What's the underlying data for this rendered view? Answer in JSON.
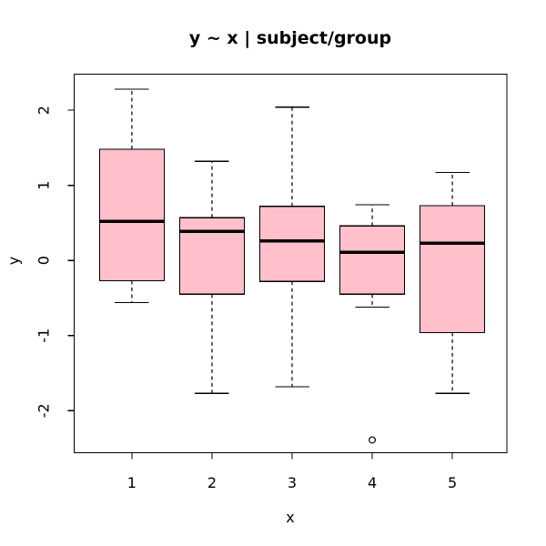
{
  "page": {
    "background": "#ffffff"
  },
  "chart_data": {
    "type": "boxplot",
    "title": "y ~ x | subject/group",
    "xlabel": "x",
    "ylabel": "y",
    "categories": [
      "1",
      "2",
      "3",
      "4",
      "5"
    ],
    "y_ticks": [
      "-2",
      "-1",
      "0",
      "1",
      "2"
    ],
    "ylim": [
      -2.56,
      2.48
    ],
    "xlim": [
      0.28,
      5.68
    ],
    "grid": false,
    "legend": "none",
    "box_fill": "#FFC0CB",
    "line_color": "#000000",
    "series": [
      {
        "x": 1,
        "whisker_low": -0.56,
        "q1": -0.27,
        "median": 0.52,
        "q3": 1.48,
        "whisker_high": 2.28,
        "outliers": []
      },
      {
        "x": 2,
        "whisker_low": -1.77,
        "q1": -0.45,
        "median": 0.39,
        "q3": 0.57,
        "whisker_high": 1.32,
        "outliers": []
      },
      {
        "x": 3,
        "whisker_low": -1.68,
        "q1": -0.28,
        "median": 0.26,
        "q3": 0.72,
        "whisker_high": 2.04,
        "outliers": []
      },
      {
        "x": 4,
        "whisker_low": -0.62,
        "q1": -0.45,
        "median": 0.11,
        "q3": 0.46,
        "whisker_high": 0.74,
        "outliers": [
          -2.39
        ]
      },
      {
        "x": 5,
        "whisker_low": -1.77,
        "q1": -0.96,
        "median": 0.23,
        "q3": 0.73,
        "whisker_high": 1.17,
        "outliers": []
      }
    ]
  }
}
